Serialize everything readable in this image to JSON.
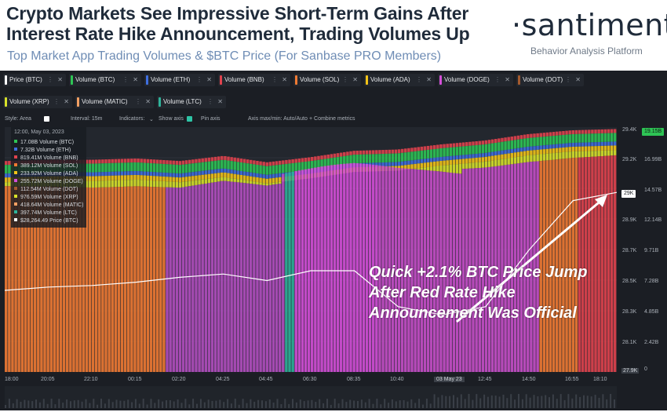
{
  "header": {
    "title": "Crypto Markets See Impressive Short-Term Gains After Interest Rate Hike Announcement, Trading Volumes Up",
    "subtitle": "Top Market App Trading Volumes & $BTC Price (For Sanbase PRO Members)",
    "brand": "·santiment·",
    "brand_sub": "Behavior Analysis Platform"
  },
  "tabs": [
    {
      "label": "Price (BTC)",
      "color": "#ffffff"
    },
    {
      "label": "Volume (BTC)",
      "color": "#2ec455"
    },
    {
      "label": "Volume (ETH)",
      "color": "#3f6fe0"
    },
    {
      "label": "Volume (BNB)",
      "color": "#e0434e"
    },
    {
      "label": "Volume (SOL)",
      "color": "#ef7a33"
    },
    {
      "label": "Volume (ADA)",
      "color": "#f2c318"
    },
    {
      "label": "Volume (DOGE)",
      "color": "#d44fd8"
    },
    {
      "label": "Volume (DOT)",
      "color": "#a45a2e"
    },
    {
      "label": "Volume (XRP)",
      "color": "#d8e22a"
    },
    {
      "label": "Volume (MATIC)",
      "color": "#f2a063"
    },
    {
      "label": "Volume (LTC)",
      "color": "#2fb39a"
    }
  ],
  "toolbar": {
    "style": "Style: Area",
    "interval": "Interval: 15m",
    "indicators": "Indicators:",
    "show_axis": "Show axis",
    "pin_axis": "Pin axis",
    "axis_minmax": "Axis max/min: Auto/Auto",
    "combine": "+ Combine metrics"
  },
  "legend": {
    "date": "12:00, May 03, 2023",
    "rows": [
      {
        "text": "17.08B Volume (BTC)",
        "color": "#2ec455"
      },
      {
        "text": "7.32B Volume (ETH)",
        "color": "#3f6fe0"
      },
      {
        "text": "819.41M Volume (BNB)",
        "color": "#e0434e"
      },
      {
        "text": "389.12M Volume (SOL)",
        "color": "#ef7a33"
      },
      {
        "text": "233.92M Volume (ADA)",
        "color": "#f2c318"
      },
      {
        "text": "255.72M Volume (DOGE)",
        "color": "#d44fd8"
      },
      {
        "text": "112.54M Volume (DOT)",
        "color": "#a45a2e"
      },
      {
        "text": "976.59M Volume (XRP)",
        "color": "#d8e22a"
      },
      {
        "text": "418.64M Volume (MATIC)",
        "color": "#f2a063"
      },
      {
        "text": "397.74M Volume (LTC)",
        "color": "#2fb39a"
      },
      {
        "text": "$28,264.49 Price (BTC)",
        "color": "#ffffff"
      }
    ]
  },
  "annotation": "Quick +2.1% BTC Price Jump After Red Rate Hike Announcement Was Official",
  "price_axis": [
    "29.4K",
    "29.2K",
    "29K",
    "28.9K",
    "28.7K",
    "28.5K",
    "28.3K",
    "28.1K",
    "27.9K"
  ],
  "volume_axis": [
    "19.15B",
    "16.99B",
    "14.57B",
    "12.14B",
    "9.71B",
    "7.28B",
    "4.85B",
    "2.42B",
    "0"
  ],
  "price_badge": "29K",
  "volume_badge": "19.15B",
  "chart_data": {
    "type": "area",
    "x": [
      "18:00",
      "19:30",
      "20:05",
      "22:10",
      "00:15",
      "02:20",
      "04:25",
      "04:45",
      "06:30",
      "08:35",
      "10:40",
      "12:45",
      "14:50",
      "16:55",
      "18:10"
    ],
    "x_labels": [
      "18:00",
      "20:05",
      "22:10",
      "00:15",
      "02:20",
      "04:25",
      "04:45",
      "06:30",
      "08:35",
      "10:40",
      "03 May 23",
      "12:45",
      "14:50",
      "16:55",
      "18:10"
    ],
    "price_btc": [
      28400,
      28420,
      28430,
      28450,
      28480,
      28500,
      28460,
      28520,
      28520,
      28300,
      28250,
      28300,
      28650,
      28950,
      29000
    ],
    "price_ylim": [
      27900,
      29400
    ],
    "volume_ylim": [
      0,
      19150000000
    ],
    "volume_total_billions": [
      16.5,
      16.6,
      16.6,
      16.7,
      16.5,
      16.9,
      16.4,
      16.8,
      17.3,
      17.4,
      17.8,
      18.1,
      18.6,
      18.9,
      19.0
    ],
    "grid": true
  }
}
